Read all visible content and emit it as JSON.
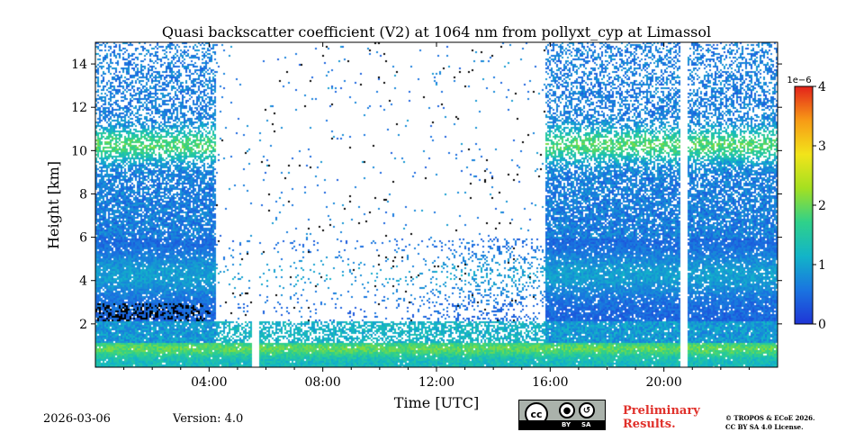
{
  "chart_data": {
    "type": "heatmap",
    "title": "Quasi backscatter coefficient (V2) at 1064 nm from pollyxt_cyp at Limassol",
    "xlabel": "Time [UTC]",
    "ylabel": "Height [km]",
    "xlim_hours": [
      0,
      24
    ],
    "ylim_km": [
      0,
      15
    ],
    "xticks": [
      {
        "value": 4,
        "label": "04:00"
      },
      {
        "value": 8,
        "label": "08:00"
      },
      {
        "value": 12,
        "label": "12:00"
      },
      {
        "value": 16,
        "label": "16:00"
      },
      {
        "value": 20,
        "label": "20:00"
      }
    ],
    "yticks": [
      {
        "value": 2,
        "label": "2"
      },
      {
        "value": 4,
        "label": "4"
      },
      {
        "value": 6,
        "label": "6"
      },
      {
        "value": 8,
        "label": "8"
      },
      {
        "value": 10,
        "label": "10"
      },
      {
        "value": 12,
        "label": "12"
      },
      {
        "value": 14,
        "label": "14"
      }
    ],
    "colorbar": {
      "range": [
        0,
        4
      ],
      "scale_label": "1e−6",
      "ticks": [
        {
          "value": 0,
          "label": "0"
        },
        {
          "value": 1,
          "label": "1"
        },
        {
          "value": 2,
          "label": "2"
        },
        {
          "value": 3,
          "label": "3"
        },
        {
          "value": 4,
          "label": "4"
        }
      ],
      "colormap": [
        "#1f35d6",
        "#1a74e0",
        "#12b4c8",
        "#2fd18a",
        "#a4e021",
        "#f2e41a",
        "#f79a16",
        "#e3221b"
      ]
    },
    "data_gaps_hours": [
      5.6,
      20.7
    ],
    "features": {
      "boundary_layer_top_km": 1.0,
      "aerosol_layer_km": [
        2.5,
        6.0
      ],
      "cirrus_km": [
        10.0,
        11.0
      ]
    }
  },
  "footer": {
    "date": "2026-03-06",
    "version": "Version: 4.0",
    "license_badge": {
      "left_text": "BY",
      "right_text": "SA",
      "icon_cc": "cc",
      "icon_by": "by-icon",
      "icon_sa": "sa-icon"
    },
    "preliminary_line1": "Preliminary",
    "preliminary_line2": "Results.",
    "copyright_line1": "© TROPOS & ECoE 2026.",
    "copyright_line2": "CC BY SA 4.0 License."
  }
}
